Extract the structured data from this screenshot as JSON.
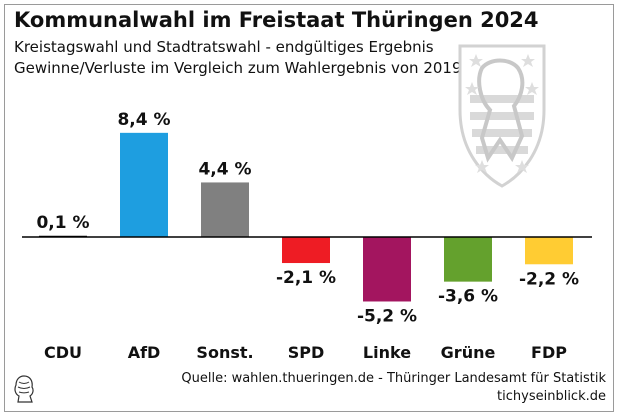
{
  "title": "Kommunalwahl im Freistaat Thüringen 2024",
  "subtitle1": "Kreistagswahl und Stadtratswahl - endgültiges Ergebnis",
  "subtitle2": "Gewinne/Verluste im Vergleich zum Wahlergebnis von 2019",
  "source": "Quelle: wahlen.thueringen.de - Thüringer Landesamt für Statistik",
  "site": "tichyseinblick.de",
  "emblem": "thuringia-coat-of-arms",
  "chart_data": {
    "type": "bar",
    "categories": [
      "CDU",
      "AfD",
      "Sonst.",
      "SPD",
      "Linke",
      "Grüne",
      "FDP"
    ],
    "values": [
      0.1,
      8.4,
      4.4,
      -2.1,
      -5.2,
      -3.6,
      -2.2
    ],
    "labels": [
      "0,1 %",
      "8,4 %",
      "4,4 %",
      "-2,1 %",
      "-5,2 %",
      "-3,6 %",
      "-2,2 %"
    ],
    "colors": [
      "#000000",
      "#1e9ee0",
      "#808080",
      "#ee1c24",
      "#a3155f",
      "#64a12d",
      "#ffcc33"
    ],
    "ylim": [
      -6,
      9
    ],
    "grid": false,
    "legend": "none"
  }
}
